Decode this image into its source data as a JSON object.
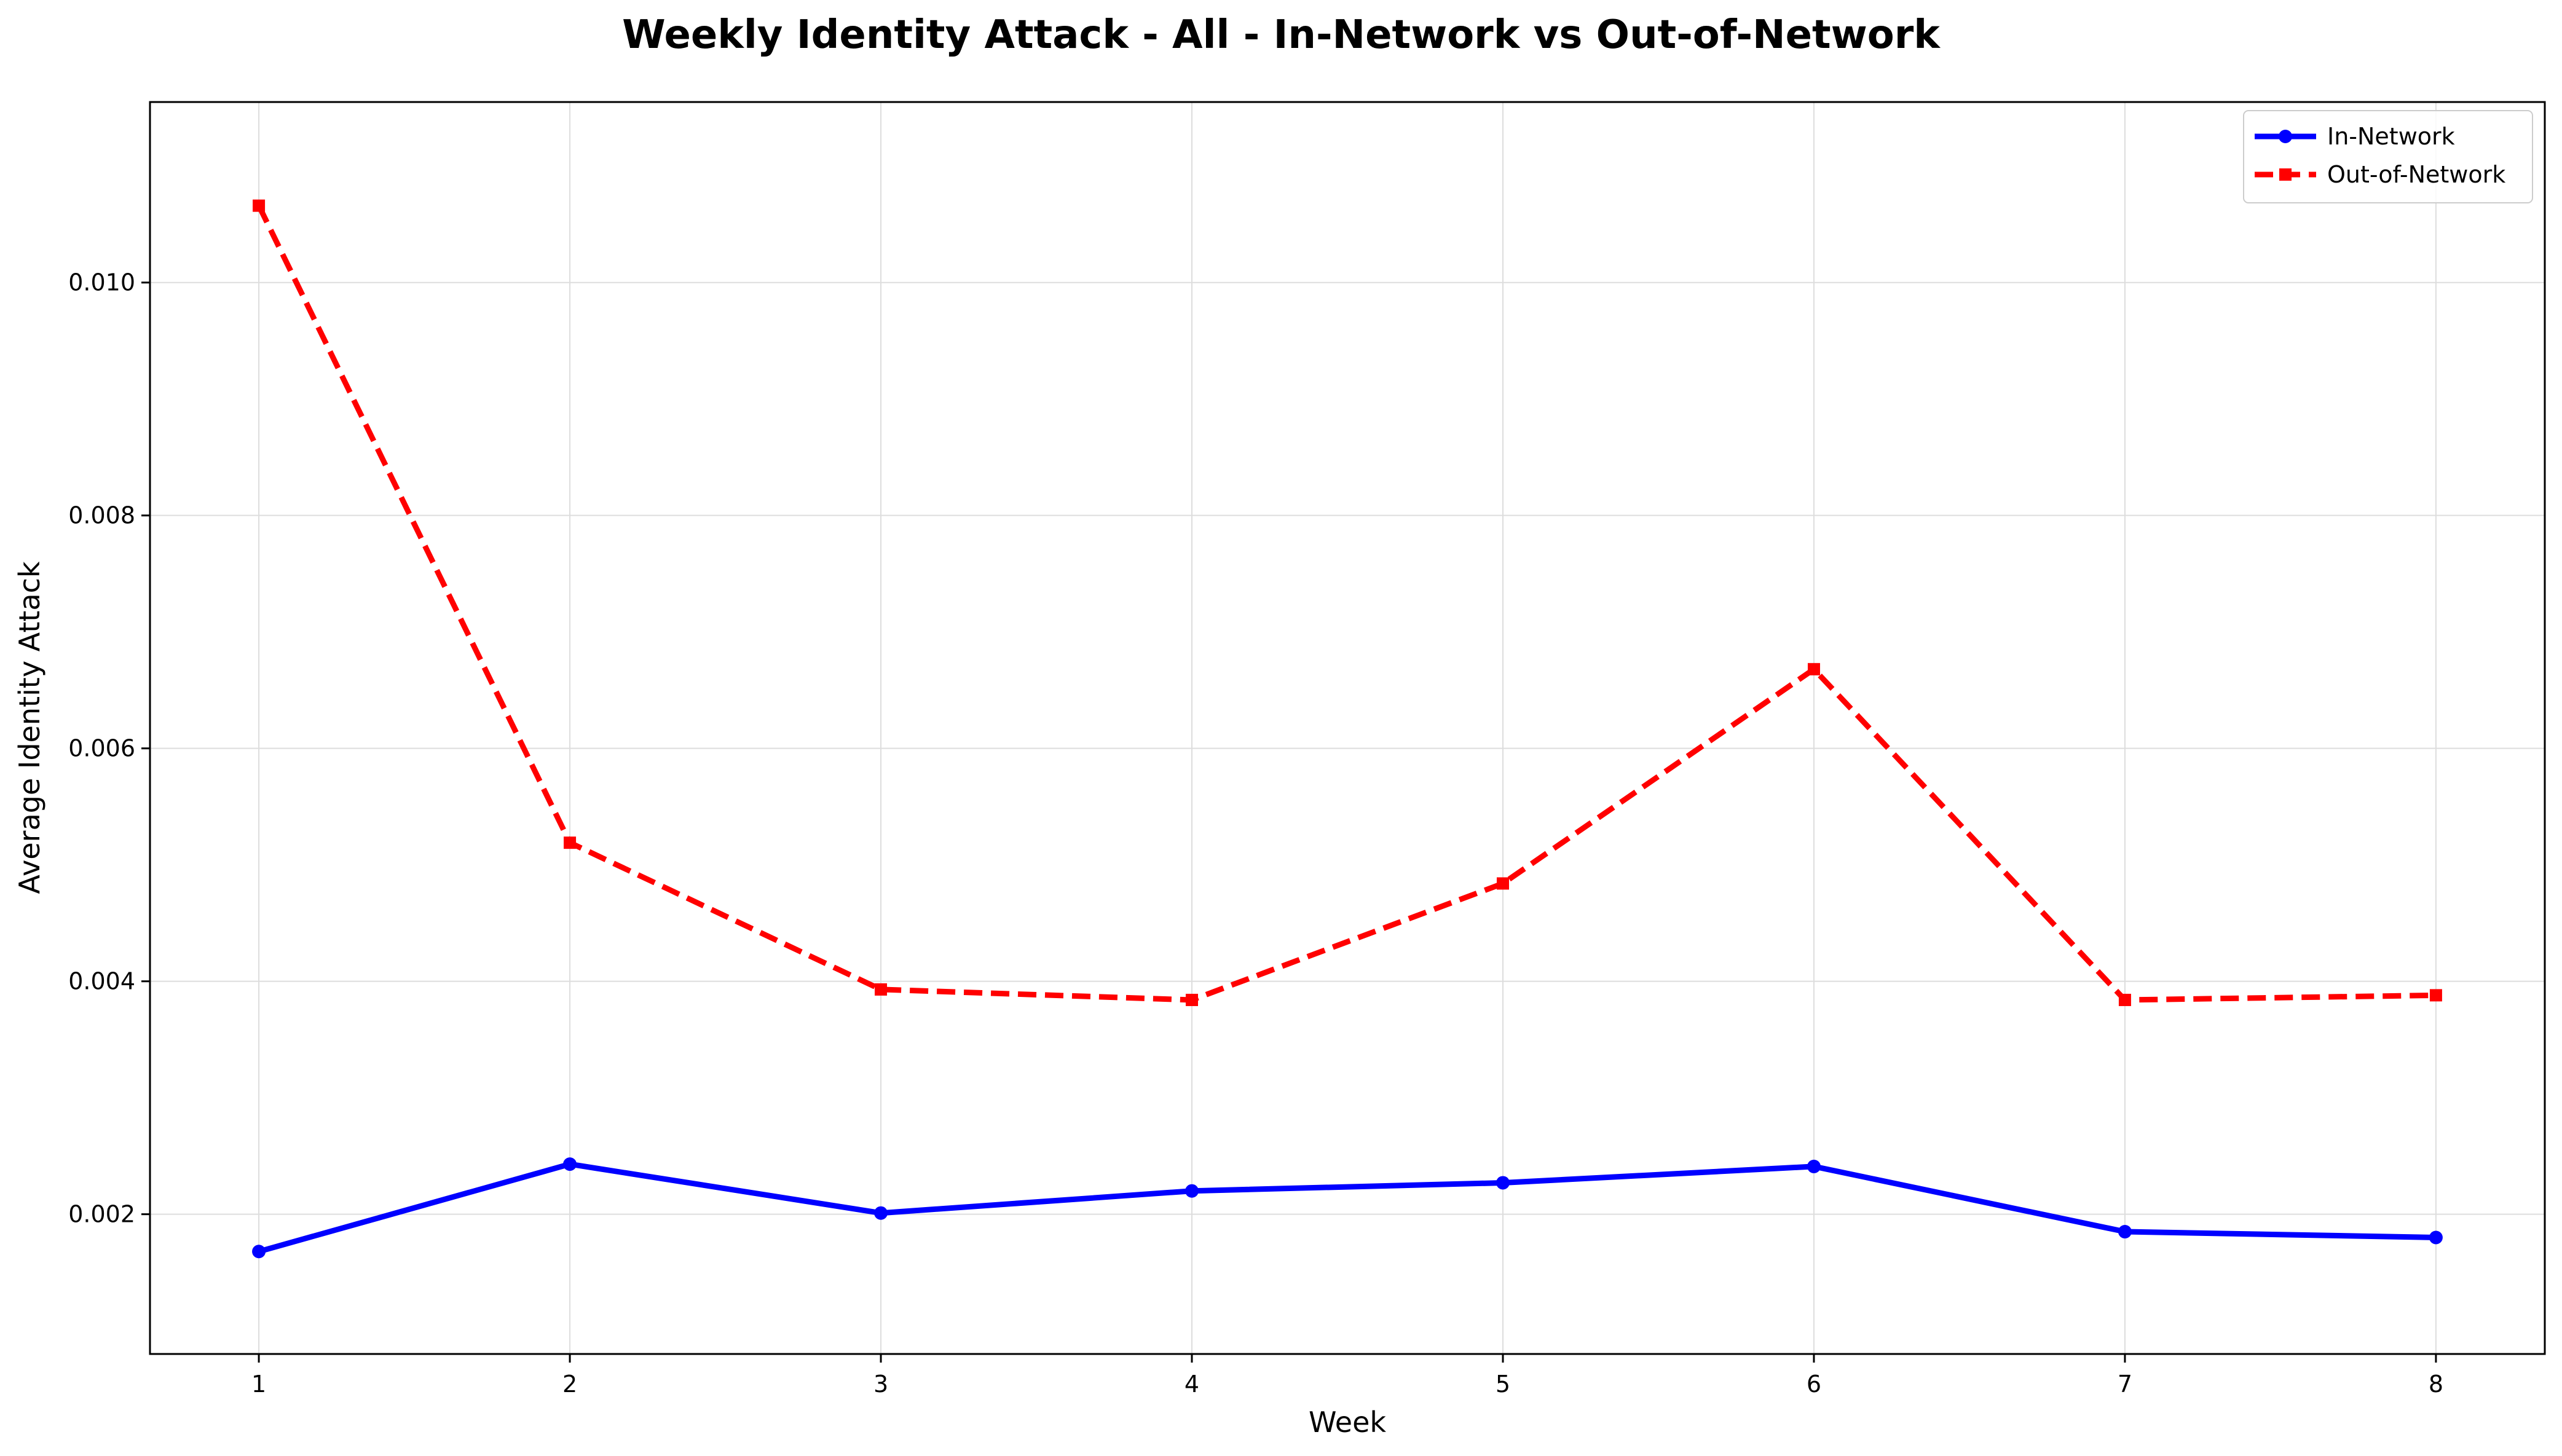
{
  "chart_data": {
    "type": "line",
    "title": "Weekly Identity Attack - All - In-Network vs Out-of-Network",
    "xlabel": "Week",
    "ylabel": "Average Identity Attack",
    "x": [
      1,
      2,
      3,
      4,
      5,
      6,
      7,
      8
    ],
    "x_ticks": [
      "1",
      "2",
      "3",
      "4",
      "5",
      "6",
      "7",
      "8"
    ],
    "xlim": [
      0.65,
      8.35
    ],
    "ylim": [
      0.0008,
      0.01155
    ],
    "y_ticks": [
      "0.002",
      "0.004",
      "0.006",
      "0.008",
      "0.010"
    ],
    "y_tick_values": [
      0.002,
      0.004,
      0.006,
      0.008,
      0.01
    ],
    "grid": true,
    "legend_position": "top-right",
    "series": [
      {
        "name": "In-Network",
        "color": "#0000ff",
        "style": "solid",
        "marker": "circle",
        "values": [
          0.00168,
          0.00243,
          0.00201,
          0.0022,
          0.00227,
          0.00241,
          0.00185,
          0.0018
        ]
      },
      {
        "name": "Out-of-Network",
        "color": "#ff0000",
        "style": "dashed",
        "marker": "square",
        "values": [
          0.01066,
          0.00519,
          0.00393,
          0.00384,
          0.00484,
          0.00668,
          0.00384,
          0.00388
        ]
      }
    ]
  }
}
